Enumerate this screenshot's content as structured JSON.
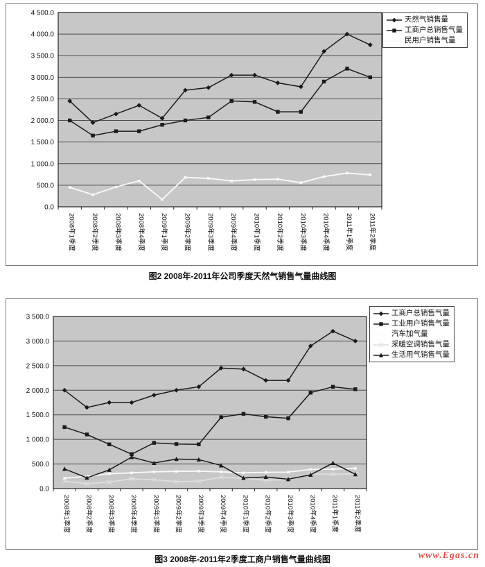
{
  "page": {
    "figure2_caption": "图2 2008年-2011年公司季度天然气销售气量曲线图",
    "figure3_caption": "图3 2008年-2011年2季度工商户销售气量曲线图",
    "watermark": "www.Egas.cn",
    "watermark_color": "#e0514d"
  },
  "chart_data": [
    {
      "id": "figure2",
      "type": "line",
      "title": "图2 2008年-2011年公司季度天然气销售气量曲线图",
      "xlabel": "",
      "ylabel": "",
      "ylim": [
        0,
        4500
      ],
      "ystep": 500,
      "grid": true,
      "legend_position": "top-right",
      "plot_bg": "#c7c7c7",
      "categories": [
        "2008年1季度",
        "2008年2季度",
        "2008年3季度",
        "2008年4季度",
        "2009年1季度",
        "2009年2季度",
        "2009年3季度",
        "2009年4季度",
        "2010年1季度",
        "2010年2季度",
        "2010年3季度",
        "2010年4季度",
        "2011年1季度",
        "2011年2季度"
      ],
      "series": [
        {
          "name": "天然气销售量",
          "marker": "diamond",
          "color": "#1a1a1a",
          "values": [
            2450,
            1950,
            2150,
            2350,
            2050,
            2700,
            2760,
            3050,
            3050,
            2870,
            2780,
            3600,
            4000,
            3750
          ]
        },
        {
          "name": "工商户总销售气量",
          "marker": "square",
          "color": "#1a1a1a",
          "values": [
            2000,
            1650,
            1750,
            1750,
            1900,
            2000,
            2070,
            2450,
            2430,
            2200,
            2200,
            2900,
            3200,
            3000
          ]
        },
        {
          "name": "民用户销售气量",
          "marker": "dot",
          "color": "#fafafa",
          "values": [
            450,
            280,
            460,
            600,
            170,
            680,
            660,
            600,
            630,
            640,
            560,
            700,
            780,
            740
          ]
        }
      ]
    },
    {
      "id": "figure3",
      "type": "line",
      "title": "图3 2008年-2011年2季度工商户销售气量曲线图",
      "xlabel": "",
      "ylabel": "",
      "ylim": [
        0,
        3500
      ],
      "ystep": 500,
      "grid": true,
      "legend_position": "top-right",
      "plot_bg": "#c7c7c7",
      "categories": [
        "2008年1季度",
        "2008年2季度",
        "2008年3季度",
        "2008年4季度",
        "2009年1季度",
        "2009年2季度",
        "2009年3季度",
        "2009年4季度",
        "2010年1季度",
        "2010年2季度",
        "2010年3季度",
        "2010年4季度",
        "2011年1季度",
        "2011年2季度"
      ],
      "series": [
        {
          "name": "工商户总销售气量",
          "marker": "diamond",
          "color": "#1a1a1a",
          "values": [
            2000,
            1650,
            1750,
            1750,
            1900,
            2000,
            2070,
            2450,
            2430,
            2200,
            2200,
            2900,
            3200,
            3000
          ]
        },
        {
          "name": "工业用户销售气量",
          "marker": "square",
          "color": "#1a1a1a",
          "values": [
            1250,
            1100,
            900,
            700,
            930,
            905,
            900,
            1450,
            1520,
            1460,
            1430,
            1950,
            2070,
            2020
          ]
        },
        {
          "name": "汽车加气量",
          "marker": "dot",
          "color": "#fafafa",
          "values": [
            210,
            250,
            300,
            320,
            340,
            350,
            355,
            340,
            320,
            330,
            335,
            390,
            395,
            410
          ]
        },
        {
          "name": "采暖空调销售气量",
          "marker": "x",
          "color": "#dedede",
          "values": [
            150,
            100,
            130,
            200,
            180,
            140,
            150,
            230,
            210,
            170,
            180,
            300,
            290,
            300
          ]
        },
        {
          "name": "生活用气销售气量",
          "marker": "triangle",
          "color": "#1a1a1a",
          "values": [
            400,
            220,
            380,
            640,
            520,
            600,
            590,
            470,
            215,
            235,
            190,
            280,
            520,
            290
          ]
        }
      ]
    }
  ]
}
